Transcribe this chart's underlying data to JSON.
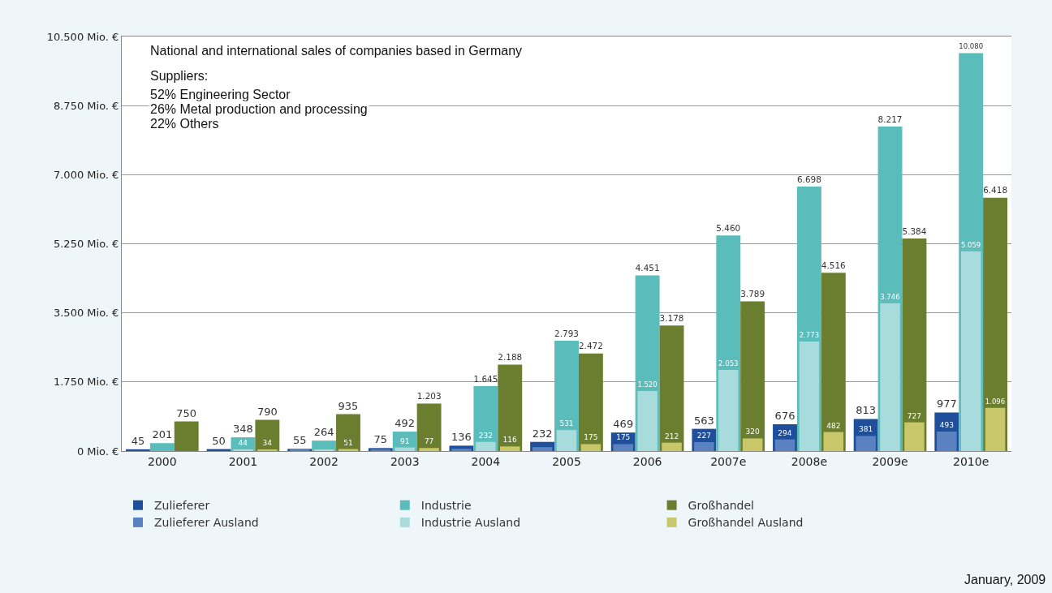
{
  "chart_data": {
    "type": "bar",
    "categories": [
      "2000",
      "2001",
      "2002",
      "2003",
      "2004",
      "2005",
      "2006",
      "2007e",
      "2008e",
      "2009e",
      "2010e"
    ],
    "series": [
      {
        "name": "Zulieferer",
        "color": "#1f4e9a",
        "values": [
          45,
          50,
          55,
          75,
          136,
          232,
          469,
          563,
          676,
          813,
          977
        ],
        "value_labels": [
          "45",
          "50",
          "55",
          "75",
          "136",
          "232",
          "469",
          "563",
          "676",
          "813",
          "977"
        ]
      },
      {
        "name": "Industrie",
        "color": "#5bbcbc",
        "values": [
          201,
          348,
          264,
          492,
          1645,
          2793,
          4451,
          5460,
          6698,
          8217,
          10080
        ],
        "value_labels": [
          "201",
          "348",
          "264",
          "492",
          "1.645",
          "2.793",
          "4.451",
          "5.460",
          "6.698",
          "8.217",
          "10.080"
        ]
      },
      {
        "name": "Großhandel",
        "color": "#6b7d2e",
        "values": [
          750,
          790,
          935,
          1203,
          2188,
          2472,
          3178,
          3789,
          4516,
          5384,
          6418
        ],
        "value_labels": [
          "750",
          "790",
          "935",
          "1.203",
          "2.188",
          "2.472",
          "3.178",
          "3.789",
          "4.516",
          "5.384",
          "6.418"
        ]
      },
      {
        "name": "Zulieferer Ausland",
        "color": "#5a82c0",
        "values": [
          null,
          null,
          30,
          30,
          60,
          100,
          175,
          227,
          294,
          381,
          493
        ],
        "value_labels": [
          null,
          null,
          null,
          null,
          null,
          null,
          "175",
          "227",
          "294",
          "381",
          "493"
        ]
      },
      {
        "name": "Industrie Ausland",
        "color": "#a8dcdc",
        "values": [
          null,
          44,
          40,
          91,
          232,
          531,
          1520,
          2053,
          2773,
          3746,
          5059
        ],
        "value_labels": [
          null,
          "44",
          null,
          "91",
          "232",
          "531",
          "1.520",
          "2.053",
          "2.773",
          "3.746",
          "5.059"
        ]
      },
      {
        "name": "Großhandel Ausland",
        "color": "#c8c86a",
        "values": [
          null,
          34,
          51,
          77,
          116,
          175,
          212,
          320,
          482,
          727,
          1096
        ],
        "value_labels": [
          null,
          "34",
          "51",
          "77",
          "116",
          "175",
          "212",
          "320",
          "482",
          "727",
          "1.096"
        ]
      }
    ],
    "ylim": [
      0,
      10500
    ],
    "yticks": [
      {
        "value": 0,
        "label": "0 Mio. €"
      },
      {
        "value": 1750,
        "label": "1.750 Mio. €"
      },
      {
        "value": 3500,
        "label": "3.500 Mio. €"
      },
      {
        "value": 5250,
        "label": "5.250 Mio. €"
      },
      {
        "value": 7000,
        "label": "7.000 Mio. €"
      },
      {
        "value": 8750,
        "label": "8.750 Mio. €"
      },
      {
        "value": 10500,
        "label": "10.500 Mio. €"
      }
    ],
    "grid": "y",
    "legend": "bottom",
    "annotations": [
      "National and international sales of companies based in Germany",
      "Suppliers:",
      "52% Engineering Sector",
      "26% Metal production and processing",
      "22% Others",
      "January, 2009"
    ]
  }
}
